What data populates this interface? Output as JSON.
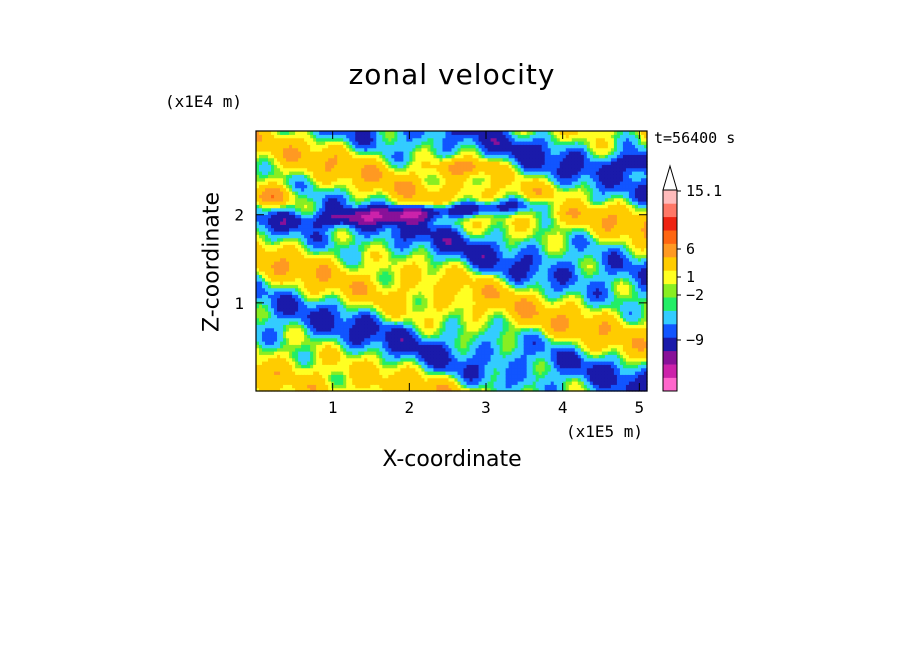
{
  "chart_data": {
    "type": "heatmap",
    "title": "zonal velocity",
    "xlabel": "X-coordinate",
    "ylabel": "Z-coordinate",
    "x_unit": "(x1E5 m)",
    "y_unit": "(x1E4 m)",
    "annotation": "t=56400 s",
    "xlim": [
      0,
      5.1
    ],
    "ylim": [
      0,
      2.95
    ],
    "x_ticks": [
      1,
      2,
      3,
      4,
      5
    ],
    "y_ticks": [
      1,
      2
    ],
    "colorbar": {
      "labels": [
        "15.1",
        "6",
        "1",
        "−2",
        "−9"
      ],
      "colors": [
        "#ff66cc",
        "#cc22aa",
        "#881199",
        "#1a1aaa",
        "#1155ff",
        "#33ccff",
        "#22ee66",
        "#88ee22",
        "#ffff22",
        "#ffcc00",
        "#ff9922",
        "#ff6611",
        "#ee2211",
        "#ff7766",
        "#ffbbbb"
      ],
      "extend": "max"
    },
    "field_description": "u-velocity contours over X 0-5.1e5 m, Z 0-2.95e4 m; mostly green/yellow bands with blue jet near Z~2.1, orange near top-left"
  }
}
